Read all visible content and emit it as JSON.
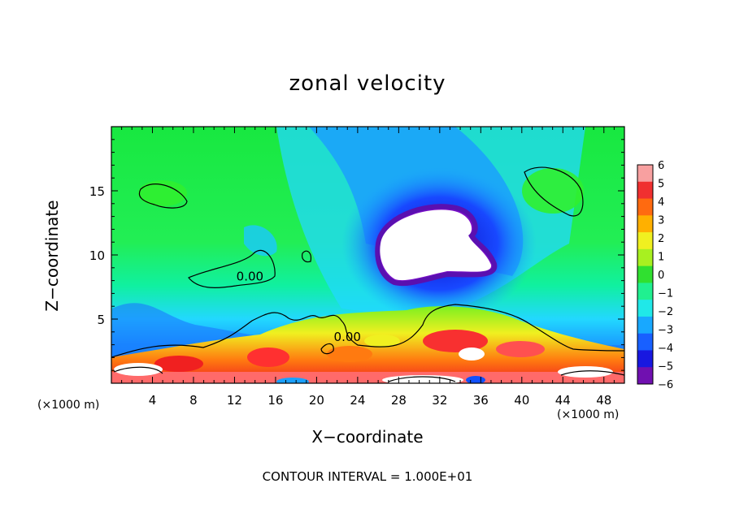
{
  "chart_data": {
    "type": "heatmap",
    "title": "zonal velocity",
    "xlabel": "X−coordinate",
    "ylabel": "Z−coordinate",
    "x_unit": "(×1000 m)",
    "y_unit": "(×1000 m)",
    "xlim": [
      0,
      50
    ],
    "ylim": [
      0,
      20
    ],
    "x_ticks": [
      4,
      8,
      12,
      16,
      20,
      24,
      28,
      32,
      36,
      40,
      44,
      48
    ],
    "y_ticks": [
      5,
      10,
      15
    ],
    "colorbar": {
      "min": -6,
      "max": 6,
      "ticks": [
        "6",
        "5",
        "4",
        "3",
        "2",
        "1",
        "0",
        "−1",
        "−2",
        "−3",
        "−4",
        "−5",
        "−6"
      ]
    },
    "contour_labels": [
      {
        "text": "0.00",
        "x": 13.5,
        "z": 8.0
      },
      {
        "text": "0.00",
        "x": 23.0,
        "z": 3.3
      }
    ],
    "contour_interval_text": "CONTOUR INTERVAL = 1.000E+01"
  }
}
